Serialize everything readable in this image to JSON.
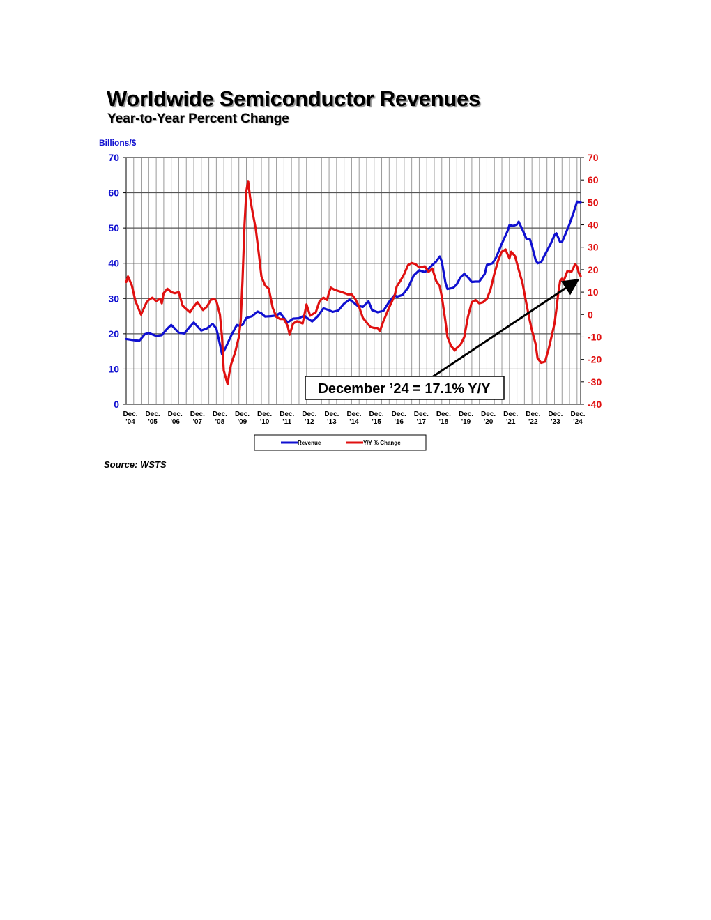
{
  "header": {
    "title": "Worldwide Semiconductor Revenues",
    "subtitle": "Year-to-Year Percent Change"
  },
  "source": "Source: WSTS",
  "chart_data": {
    "type": "line",
    "title": "Worldwide Semiconductor Revenues",
    "subtitle": "Year-to-Year Percent Change",
    "left_axis": {
      "label": "Billions/$",
      "range": [
        0,
        70
      ],
      "ticks": [
        0,
        10,
        20,
        30,
        40,
        50,
        60,
        70
      ],
      "color": "#1010d0"
    },
    "right_axis": {
      "label": "",
      "range": [
        -40,
        70
      ],
      "ticks": [
        -40,
        -30,
        -20,
        -10,
        0,
        10,
        20,
        30,
        40,
        50,
        60,
        70
      ],
      "color": "#e01010"
    },
    "x_range": [
      "Dec 2004",
      "Dec 2024"
    ],
    "x_tick_labels": [
      [
        "Dec.",
        "'04"
      ],
      [
        "Dec.",
        "'05"
      ],
      [
        "Dec.",
        "'06"
      ],
      [
        "Dec.",
        "'07"
      ],
      [
        "Dec.",
        "'08"
      ],
      [
        "Dec.",
        "'09"
      ],
      [
        "Dec.",
        "'10"
      ],
      [
        "Dec.",
        "'11"
      ],
      [
        "Dec.",
        "'12"
      ],
      [
        "Dec.",
        "'13"
      ],
      [
        "Dec.",
        "'14"
      ],
      [
        "Dec.",
        "'15"
      ],
      [
        "Dec.",
        "'16"
      ],
      [
        "Dec.",
        "'17"
      ],
      [
        "Dec.",
        "'18"
      ],
      [
        "Dec.",
        "'19"
      ],
      [
        "Dec.",
        "'20"
      ],
      [
        "Dec.",
        "'21"
      ],
      [
        "Dec.",
        "'22"
      ],
      [
        "Dec.",
        "'23"
      ],
      [
        "Dec.",
        "'24"
      ]
    ],
    "grid": true,
    "legend_position": "bottom-center",
    "annotation": {
      "text": "December ’24 = 17.1% Y/Y",
      "points_to": [
        "Dec 2024",
        15.5
      ]
    },
    "series": [
      {
        "name": "Revenue",
        "axis": "left",
        "color": "#1010d0",
        "points": [
          [
            2004.92,
            18.5
          ],
          [
            2005.25,
            18.2
          ],
          [
            2005.5,
            18.0
          ],
          [
            2005.75,
            19.9
          ],
          [
            2005.92,
            20.2
          ],
          [
            2006.25,
            19.4
          ],
          [
            2006.5,
            19.6
          ],
          [
            2006.75,
            21.5
          ],
          [
            2006.92,
            22.5
          ],
          [
            2007.25,
            20.3
          ],
          [
            2007.5,
            20.1
          ],
          [
            2007.75,
            22.0
          ],
          [
            2007.92,
            23.2
          ],
          [
            2008.25,
            20.9
          ],
          [
            2008.5,
            21.5
          ],
          [
            2008.75,
            22.8
          ],
          [
            2008.92,
            21.5
          ],
          [
            2009.08,
            17.0
          ],
          [
            2009.17,
            14.2
          ],
          [
            2009.33,
            16.0
          ],
          [
            2009.58,
            19.5
          ],
          [
            2009.83,
            22.5
          ],
          [
            2009.92,
            22.3
          ],
          [
            2010.08,
            22.5
          ],
          [
            2010.25,
            24.5
          ],
          [
            2010.5,
            25.0
          ],
          [
            2010.75,
            26.3
          ],
          [
            2010.92,
            25.8
          ],
          [
            2011.08,
            24.9
          ],
          [
            2011.33,
            25.0
          ],
          [
            2011.58,
            25.2
          ],
          [
            2011.75,
            25.9
          ],
          [
            2011.92,
            24.5
          ],
          [
            2012.08,
            23.2
          ],
          [
            2012.33,
            24.3
          ],
          [
            2012.58,
            24.4
          ],
          [
            2012.83,
            25.2
          ],
          [
            2012.92,
            24.6
          ],
          [
            2013.17,
            23.5
          ],
          [
            2013.42,
            25.0
          ],
          [
            2013.67,
            27.2
          ],
          [
            2013.92,
            26.7
          ],
          [
            2014.08,
            26.2
          ],
          [
            2014.33,
            26.6
          ],
          [
            2014.58,
            28.5
          ],
          [
            2014.83,
            29.7
          ],
          [
            2014.92,
            29.3
          ],
          [
            2015.17,
            28.0
          ],
          [
            2015.42,
            27.6
          ],
          [
            2015.67,
            29.2
          ],
          [
            2015.83,
            26.7
          ],
          [
            2016.08,
            26.1
          ],
          [
            2016.33,
            26.5
          ],
          [
            2016.58,
            29.0
          ],
          [
            2016.83,
            31.0
          ],
          [
            2016.92,
            30.5
          ],
          [
            2017.17,
            31.0
          ],
          [
            2017.42,
            33.0
          ],
          [
            2017.67,
            36.5
          ],
          [
            2017.92,
            38.0
          ],
          [
            2018.17,
            37.5
          ],
          [
            2018.42,
            39.0
          ],
          [
            2018.67,
            40.5
          ],
          [
            2018.83,
            41.9
          ],
          [
            2018.92,
            40.5
          ],
          [
            2019.08,
            34.5
          ],
          [
            2019.17,
            32.7
          ],
          [
            2019.42,
            33.0
          ],
          [
            2019.58,
            34.0
          ],
          [
            2019.75,
            36.0
          ],
          [
            2019.92,
            37.0
          ],
          [
            2020.08,
            36.0
          ],
          [
            2020.25,
            34.7
          ],
          [
            2020.42,
            34.8
          ],
          [
            2020.58,
            34.8
          ],
          [
            2020.83,
            37.0
          ],
          [
            2020.92,
            39.5
          ],
          [
            2021.17,
            40.0
          ],
          [
            2021.33,
            41.6
          ],
          [
            2021.58,
            45.5
          ],
          [
            2021.83,
            49.0
          ],
          [
            2021.92,
            50.8
          ],
          [
            2022.08,
            50.6
          ],
          [
            2022.25,
            51.0
          ],
          [
            2022.33,
            51.8
          ],
          [
            2022.5,
            49.5
          ],
          [
            2022.67,
            47.0
          ],
          [
            2022.83,
            46.8
          ],
          [
            2022.92,
            45.0
          ],
          [
            2023.08,
            41.0
          ],
          [
            2023.17,
            40.0
          ],
          [
            2023.33,
            40.3
          ],
          [
            2023.5,
            42.5
          ],
          [
            2023.75,
            45.5
          ],
          [
            2023.92,
            48.0
          ],
          [
            2024.0,
            48.5
          ],
          [
            2024.17,
            46.0
          ],
          [
            2024.25,
            46.0
          ],
          [
            2024.42,
            48.5
          ],
          [
            2024.58,
            51.0
          ],
          [
            2024.75,
            54.0
          ],
          [
            2024.92,
            57.5
          ],
          [
            2025.08,
            57.3
          ]
        ]
      },
      {
        "name": "Y/Y % Change",
        "axis": "right",
        "color": "#e01010",
        "points": [
          [
            2004.92,
            14.5
          ],
          [
            2005.0,
            17.0
          ],
          [
            2005.17,
            13.0
          ],
          [
            2005.33,
            6.0
          ],
          [
            2005.58,
            0.0
          ],
          [
            2005.83,
            5.5
          ],
          [
            2005.92,
            6.5
          ],
          [
            2006.08,
            7.5
          ],
          [
            2006.25,
            6.0
          ],
          [
            2006.42,
            7.0
          ],
          [
            2006.5,
            5.0
          ],
          [
            2006.58,
            9.5
          ],
          [
            2006.75,
            11.5
          ],
          [
            2006.92,
            10.0
          ],
          [
            2007.08,
            9.5
          ],
          [
            2007.25,
            10.0
          ],
          [
            2007.42,
            4.0
          ],
          [
            2007.58,
            2.5
          ],
          [
            2007.75,
            1.0
          ],
          [
            2007.92,
            3.5
          ],
          [
            2008.08,
            5.5
          ],
          [
            2008.33,
            2.0
          ],
          [
            2008.5,
            3.5
          ],
          [
            2008.67,
            6.5
          ],
          [
            2008.83,
            7.0
          ],
          [
            2008.92,
            6.0
          ],
          [
            2009.08,
            0.0
          ],
          [
            2009.17,
            -10.0
          ],
          [
            2009.25,
            -25.0
          ],
          [
            2009.42,
            -31.0
          ],
          [
            2009.5,
            -26.0
          ],
          [
            2009.58,
            -22.0
          ],
          [
            2009.75,
            -17.0
          ],
          [
            2009.92,
            -10.0
          ],
          [
            2010.0,
            -3.0
          ],
          [
            2010.08,
            15.0
          ],
          [
            2010.17,
            40.0
          ],
          [
            2010.25,
            55.0
          ],
          [
            2010.33,
            59.5
          ],
          [
            2010.42,
            52.0
          ],
          [
            2010.5,
            47.0
          ],
          [
            2010.67,
            38.0
          ],
          [
            2010.83,
            25.0
          ],
          [
            2010.92,
            17.0
          ],
          [
            2011.08,
            13.0
          ],
          [
            2011.25,
            11.5
          ],
          [
            2011.42,
            3.0
          ],
          [
            2011.58,
            -1.0
          ],
          [
            2011.75,
            -2.0
          ],
          [
            2011.92,
            -2.0
          ],
          [
            2012.08,
            -5.0
          ],
          [
            2012.17,
            -9.0
          ],
          [
            2012.33,
            -4.0
          ],
          [
            2012.5,
            -3.0
          ],
          [
            2012.75,
            -4.0
          ],
          [
            2012.92,
            4.5
          ],
          [
            2013.08,
            -0.5
          ],
          [
            2013.33,
            1.0
          ],
          [
            2013.5,
            6.0
          ],
          [
            2013.67,
            7.5
          ],
          [
            2013.83,
            6.5
          ],
          [
            2013.92,
            10.0
          ],
          [
            2014.0,
            12.0
          ],
          [
            2014.17,
            11.0
          ],
          [
            2014.33,
            10.5
          ],
          [
            2014.5,
            10.0
          ],
          [
            2014.75,
            9.0
          ],
          [
            2014.92,
            9.0
          ],
          [
            2015.08,
            7.0
          ],
          [
            2015.25,
            3.5
          ],
          [
            2015.42,
            -1.5
          ],
          [
            2015.58,
            -3.5
          ],
          [
            2015.75,
            -5.5
          ],
          [
            2015.92,
            -6.0
          ],
          [
            2016.08,
            -6.0
          ],
          [
            2016.17,
            -7.5
          ],
          [
            2016.33,
            -3.0
          ],
          [
            2016.58,
            3.0
          ],
          [
            2016.83,
            8.5
          ],
          [
            2016.92,
            12.5
          ],
          [
            2017.08,
            15.0
          ],
          [
            2017.25,
            18.0
          ],
          [
            2017.42,
            22.0
          ],
          [
            2017.58,
            23.0
          ],
          [
            2017.75,
            22.5
          ],
          [
            2017.92,
            21.0
          ],
          [
            2018.17,
            21.5
          ],
          [
            2018.33,
            19.0
          ],
          [
            2018.5,
            20.5
          ],
          [
            2018.67,
            15.0
          ],
          [
            2018.83,
            12.5
          ],
          [
            2018.92,
            8.0
          ],
          [
            2019.08,
            -3.0
          ],
          [
            2019.17,
            -10.0
          ],
          [
            2019.33,
            -14.0
          ],
          [
            2019.5,
            -16.0
          ],
          [
            2019.58,
            -15.0
          ],
          [
            2019.75,
            -13.5
          ],
          [
            2019.92,
            -10.0
          ],
          [
            2020.08,
            -1.0
          ],
          [
            2020.25,
            5.5
          ],
          [
            2020.42,
            6.5
          ],
          [
            2020.58,
            5.0
          ],
          [
            2020.75,
            5.5
          ],
          [
            2020.92,
            7.0
          ],
          [
            2021.08,
            11.0
          ],
          [
            2021.25,
            18.0
          ],
          [
            2021.42,
            24.0
          ],
          [
            2021.58,
            28.0
          ],
          [
            2021.75,
            29.0
          ],
          [
            2021.83,
            27.0
          ],
          [
            2021.92,
            25.0
          ],
          [
            2022.0,
            28.0
          ],
          [
            2022.17,
            26.0
          ],
          [
            2022.33,
            20.0
          ],
          [
            2022.5,
            14.0
          ],
          [
            2022.67,
            5.0
          ],
          [
            2022.83,
            -3.0
          ],
          [
            2022.92,
            -7.0
          ],
          [
            2023.08,
            -13.0
          ],
          [
            2023.17,
            -19.5
          ],
          [
            2023.33,
            -21.5
          ],
          [
            2023.5,
            -21.0
          ],
          [
            2023.67,
            -15.0
          ],
          [
            2023.83,
            -8.0
          ],
          [
            2023.92,
            -4.0
          ],
          [
            2024.0,
            2.0
          ],
          [
            2024.08,
            9.0
          ],
          [
            2024.17,
            15.0
          ],
          [
            2024.25,
            16.0
          ],
          [
            2024.33,
            15.0
          ],
          [
            2024.5,
            19.5
          ],
          [
            2024.67,
            19.0
          ],
          [
            2024.75,
            20.5
          ],
          [
            2024.83,
            22.5
          ],
          [
            2024.92,
            21.5
          ],
          [
            2025.0,
            18.5
          ],
          [
            2025.08,
            17.1
          ]
        ]
      }
    ]
  }
}
